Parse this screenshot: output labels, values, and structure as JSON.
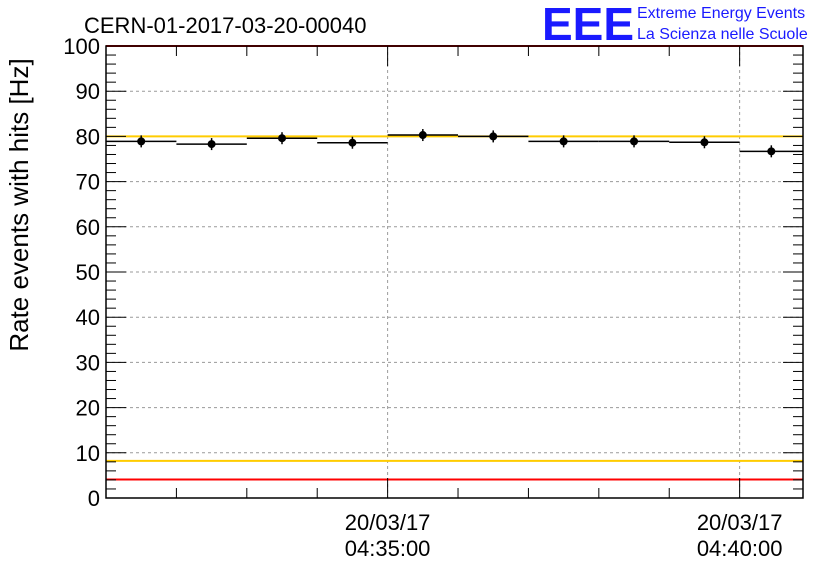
{
  "chart_data": {
    "type": "scatter",
    "title": "CERN-01-2017-03-20-00040",
    "ylabel": "Rate events with hits [Hz]",
    "xlabel": "",
    "ylim": [
      0,
      100
    ],
    "yticks": [
      0,
      10,
      20,
      30,
      40,
      50,
      60,
      70,
      80,
      90,
      100
    ],
    "ytick_labels": [
      "0",
      "10",
      "20",
      "30",
      "40",
      "50",
      "60",
      "70",
      "80",
      "90",
      "100"
    ],
    "xlim_minutes": [
      31,
      40.9
    ],
    "xtick_minutes": [
      35,
      40
    ],
    "xtick_labels": [
      {
        "date": "20/03/17",
        "time": "04:35:00"
      },
      {
        "date": "20/03/17",
        "time": "04:40:00"
      }
    ],
    "grid": true,
    "points": {
      "x_minutes": [
        31.5,
        32.5,
        33.5,
        34.5,
        35.5,
        36.5,
        37.5,
        38.5,
        39.5,
        40.45
      ],
      "x_halfwidth": [
        0.5,
        0.5,
        0.5,
        0.5,
        0.5,
        0.5,
        0.5,
        0.5,
        0.5,
        0.45
      ],
      "y": [
        78.9,
        78.3,
        79.6,
        78.6,
        80.3,
        80.0,
        78.9,
        78.9,
        78.7,
        76.7
      ]
    },
    "reference_lines": [
      {
        "y": 100,
        "color": "#ff0000"
      },
      {
        "y": 80,
        "color": "#ffcc00"
      },
      {
        "y": 8.2,
        "color": "#ffcc00"
      },
      {
        "y": 4.1,
        "color": "#ff0000"
      }
    ]
  },
  "logo": {
    "mark": "EEE",
    "line1": "Extreme Energy Events",
    "line2": "La Scienza nelle Scuole"
  }
}
